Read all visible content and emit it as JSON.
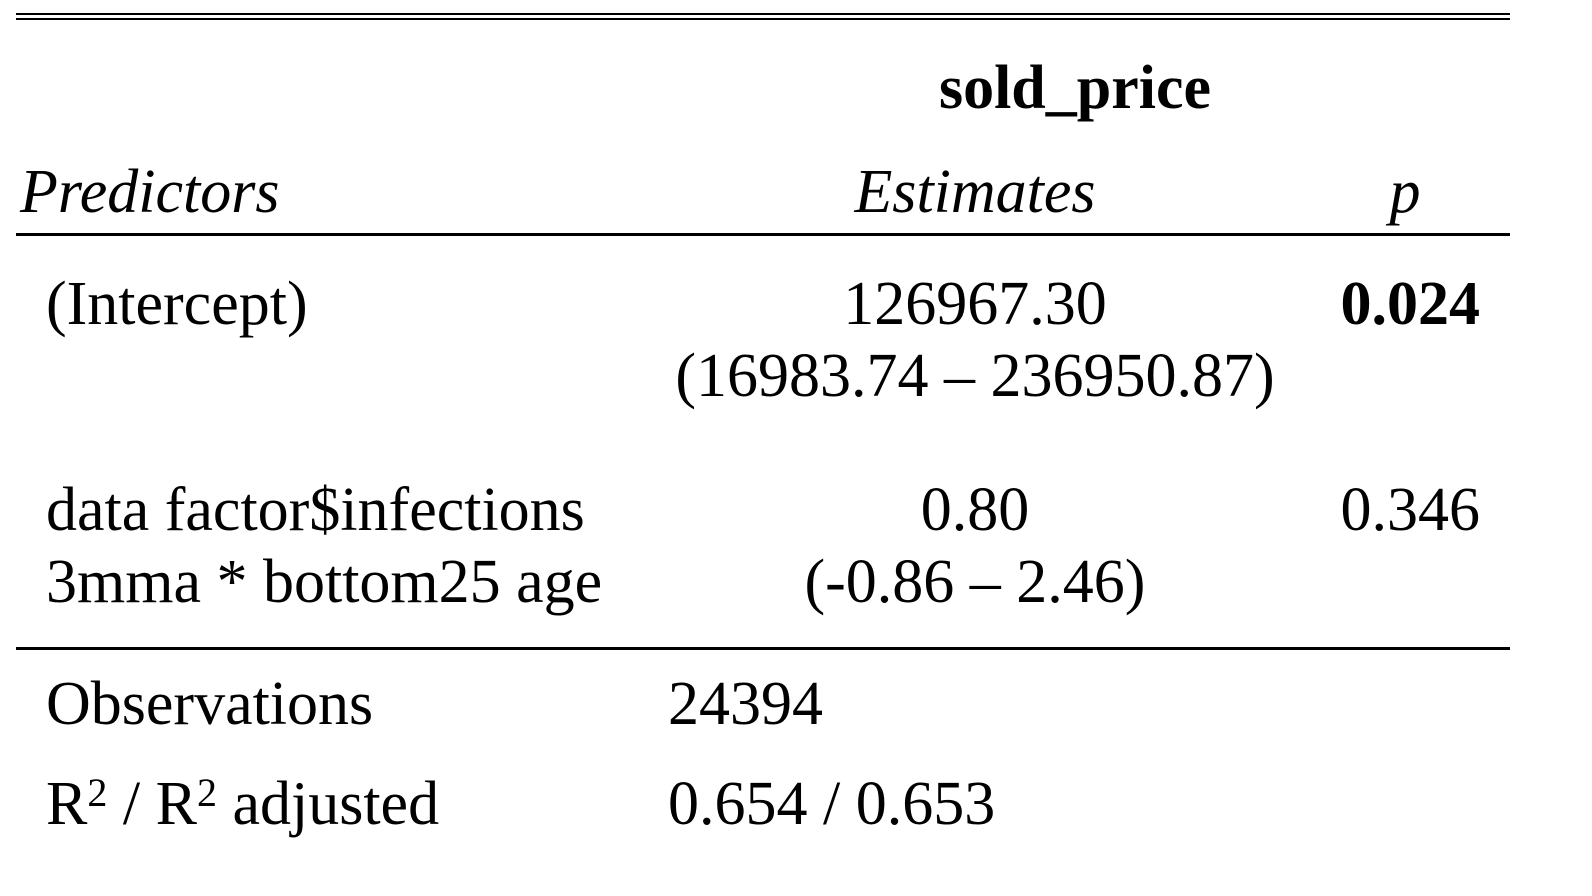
{
  "table": {
    "dependent_variable": "sold_price",
    "headers": {
      "predictors": "Predictors",
      "estimates": "Estimates",
      "p": "p"
    },
    "rows": [
      {
        "label_lines": [
          "(Intercept)"
        ],
        "estimate": "126967.30",
        "ci": "(16983.74 – 236950.87)",
        "p": "0.024",
        "p_bold": true
      },
      {
        "label_lines": [
          "data factor$infections",
          "3mma * bottom25 age"
        ],
        "estimate": "0.80",
        "ci": "(-0.86 – 2.46)",
        "p": "0.346",
        "p_bold": false
      }
    ],
    "stats": {
      "observations_label": "Observations",
      "observations_value": "24394",
      "r2_label_part1": "R",
      "r2_sup1": "2",
      "r2_label_part2": " / R",
      "r2_sup2": "2",
      "r2_label_part3": " adjusted",
      "r2_value": "0.654 / 0.653"
    }
  }
}
